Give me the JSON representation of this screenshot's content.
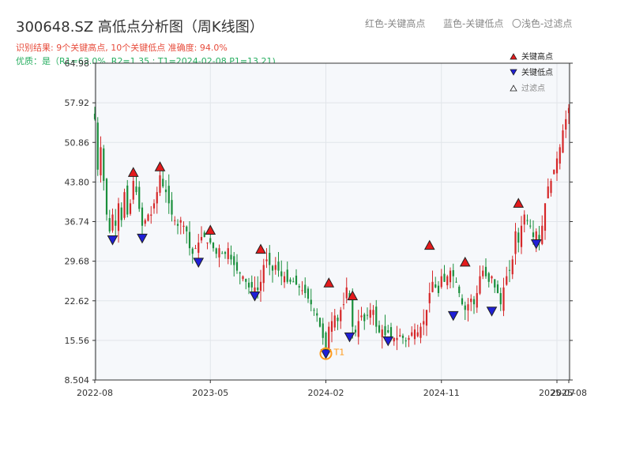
{
  "header": {
    "title": "300648.SZ 高低点分析图（周K线图）",
    "legend_red": "红色-关键高点",
    "legend_blue": "蓝色-关键低点",
    "legend_light": "〇浅色-过滤点",
    "result_line": "识别结果: 9个关键高点, 10个关键低点  准确度: 94.0%",
    "quality_line": "优质：是（R1=63.0%, R2=1.35 ; T1=2024-02-08 P1=13.21)"
  },
  "colors": {
    "up": "#d62728",
    "down": "#1a8f3c",
    "high_marker": "#e41a1c",
    "low_marker": "#1f1fd6",
    "t1_ring": "#ff9a1a",
    "plot_bg": "#f6f8fb",
    "grid": "#e1e5ea",
    "axis": "#333333"
  },
  "chart_data": {
    "type": "candlestick",
    "title": "300648.SZ 高低点分析图（周K线图）",
    "y_ticks": [
      "8.504",
      "15.56",
      "22.62",
      "29.68",
      "36.74",
      "43.80",
      "50.86",
      "57.92",
      "64.98"
    ],
    "y_tick_values": [
      8.504,
      15.56,
      22.62,
      29.68,
      36.74,
      43.8,
      50.86,
      57.92,
      64.98
    ],
    "ylim": [
      8.504,
      64.98
    ],
    "x_ticks": [
      "2022-08",
      "2023-05",
      "2024-02",
      "2024-11",
      "2025-07",
      "2025-08"
    ],
    "x_tick_weeks": [
      0,
      39,
      78,
      117,
      156,
      160
    ],
    "weeks_total": 160,
    "close_path": [
      [
        0,
        55
      ],
      [
        1,
        46
      ],
      [
        2,
        50
      ],
      [
        3,
        44
      ],
      [
        4,
        38
      ],
      [
        5,
        35
      ],
      [
        6,
        38
      ],
      [
        7,
        36
      ],
      [
        8,
        40
      ],
      [
        9,
        37
      ],
      [
        10,
        42
      ],
      [
        11,
        38
      ],
      [
        12,
        40
      ],
      [
        13,
        44
      ],
      [
        14,
        42
      ],
      [
        15,
        39
      ],
      [
        16,
        36
      ],
      [
        17,
        37
      ],
      [
        18,
        38
      ],
      [
        19,
        38
      ],
      [
        20,
        40
      ],
      [
        21,
        42
      ],
      [
        22,
        45
      ],
      [
        23,
        43
      ],
      [
        24,
        42
      ],
      [
        25,
        40
      ],
      [
        26,
        38
      ],
      [
        27,
        37
      ],
      [
        28,
        36
      ],
      [
        29,
        37
      ],
      [
        30,
        36
      ],
      [
        31,
        35
      ],
      [
        32,
        32
      ],
      [
        33,
        31
      ],
      [
        34,
        32
      ],
      [
        35,
        33
      ],
      [
        36,
        34
      ],
      [
        37,
        34
      ],
      [
        38,
        33
      ],
      [
        39,
        33
      ],
      [
        40,
        32
      ],
      [
        41,
        31
      ],
      [
        42,
        32
      ],
      [
        43,
        31
      ],
      [
        44,
        31
      ],
      [
        45,
        32
      ],
      [
        46,
        30
      ],
      [
        47,
        29
      ],
      [
        48,
        28
      ],
      [
        49,
        27.5
      ],
      [
        50,
        27
      ],
      [
        51,
        26
      ],
      [
        52,
        25
      ],
      [
        53,
        25
      ],
      [
        54,
        25
      ],
      [
        55,
        24.5
      ],
      [
        56,
        26
      ],
      [
        57,
        29
      ],
      [
        58,
        30
      ],
      [
        59,
        29
      ],
      [
        60,
        28
      ],
      [
        61,
        29
      ],
      [
        62,
        28
      ],
      [
        63,
        27
      ],
      [
        64,
        27
      ],
      [
        65,
        26
      ],
      [
        66,
        26
      ],
      [
        67,
        26
      ],
      [
        68,
        25.5
      ],
      [
        69,
        25
      ],
      [
        70,
        24.5
      ],
      [
        71,
        24
      ],
      [
        72,
        23
      ],
      [
        73,
        22
      ],
      [
        74,
        21
      ],
      [
        75,
        20
      ],
      [
        76,
        18
      ],
      [
        77,
        16
      ],
      [
        78,
        14
      ],
      [
        79,
        18
      ],
      [
        80,
        19
      ],
      [
        81,
        20
      ],
      [
        82,
        19
      ],
      [
        83,
        21
      ],
      [
        84,
        22
      ],
      [
        85,
        25
      ],
      [
        86,
        23
      ],
      [
        87,
        18
      ],
      [
        88,
        17
      ],
      [
        89,
        19
      ],
      [
        90,
        20
      ],
      [
        91,
        19
      ],
      [
        92,
        20
      ],
      [
        93,
        21
      ],
      [
        94,
        21
      ],
      [
        95,
        18
      ],
      [
        96,
        17
      ],
      [
        97,
        17.5
      ],
      [
        98,
        16.5
      ],
      [
        99,
        17
      ],
      [
        100,
        16
      ],
      [
        101,
        16
      ],
      [
        102,
        16
      ],
      [
        103,
        16.5
      ],
      [
        104,
        16
      ],
      [
        105,
        15.5
      ],
      [
        106,
        16
      ],
      [
        107,
        17
      ],
      [
        108,
        17.5
      ],
      [
        109,
        17
      ],
      [
        110,
        18
      ],
      [
        111,
        19
      ],
      [
        112,
        21
      ],
      [
        113,
        24
      ],
      [
        114,
        26
      ],
      [
        115,
        25
      ],
      [
        116,
        24
      ],
      [
        117,
        27
      ],
      [
        118,
        26
      ],
      [
        119,
        27
      ],
      [
        120,
        28
      ],
      [
        121,
        27
      ],
      [
        122,
        26
      ],
      [
        123,
        24
      ],
      [
        124,
        22
      ],
      [
        125,
        21
      ],
      [
        126,
        22
      ],
      [
        127,
        23
      ],
      [
        128,
        22
      ],
      [
        129,
        24
      ],
      [
        130,
        27
      ],
      [
        131,
        28
      ],
      [
        132,
        27
      ],
      [
        133,
        26
      ],
      [
        134,
        27
      ],
      [
        135,
        25
      ],
      [
        136,
        24
      ],
      [
        137,
        22
      ],
      [
        138,
        25
      ],
      [
        139,
        27
      ],
      [
        140,
        28
      ],
      [
        141,
        30
      ],
      [
        142,
        35
      ],
      [
        143,
        33
      ],
      [
        144,
        36
      ],
      [
        145,
        38
      ],
      [
        146,
        37
      ],
      [
        147,
        36
      ],
      [
        148,
        34
      ],
      [
        149,
        35
      ],
      [
        150,
        33
      ],
      [
        151,
        36
      ],
      [
        152,
        40
      ],
      [
        153,
        43
      ],
      [
        154,
        44
      ],
      [
        155,
        46
      ],
      [
        156,
        48
      ],
      [
        157,
        50
      ],
      [
        158,
        53
      ],
      [
        159,
        55
      ],
      [
        160,
        57
      ]
    ],
    "key_highs": [
      [
        13,
        45.5
      ],
      [
        22,
        46.5
      ],
      [
        39,
        35.2
      ],
      [
        56,
        31.8
      ],
      [
        79,
        25.8
      ],
      [
        87,
        23.5
      ],
      [
        113,
        32.5
      ],
      [
        125,
        29.5
      ],
      [
        143,
        40.0
      ]
    ],
    "key_lows": [
      [
        6,
        33.5
      ],
      [
        16,
        33.8
      ],
      [
        35,
        29.5
      ],
      [
        54,
        23.5
      ],
      [
        78,
        13.21
      ],
      [
        86,
        16.2
      ],
      [
        99,
        15.5
      ],
      [
        121,
        20.0
      ],
      [
        134,
        20.8
      ],
      [
        149,
        32.8
      ]
    ],
    "t1": {
      "week": 78,
      "value": 13.21,
      "label": "T1"
    },
    "legend": [
      "关键高点",
      "关键低点",
      "过滤点"
    ],
    "legend_placement": "top-right",
    "grid": true
  }
}
